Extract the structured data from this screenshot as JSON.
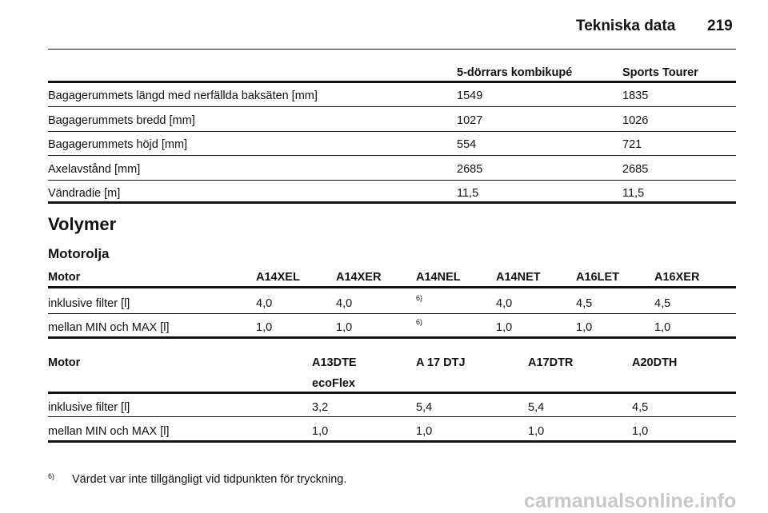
{
  "header": {
    "title": "Tekniska data",
    "page": "219"
  },
  "table1": {
    "columns": [
      "5-dörrars kombikupé",
      "Sports Tourer"
    ],
    "rows": [
      [
        "Bagagerummets längd med nerfällda baksäten [mm]",
        "1549",
        "1835"
      ],
      [
        "Bagagerummets bredd [mm]",
        "1027",
        "1026"
      ],
      [
        "Bagagerummets höjd [mm]",
        "554",
        "721"
      ],
      [
        "Axelavstånd [mm]",
        "2685",
        "2685"
      ],
      [
        "Vändradie [m]",
        "11,5",
        "11,5"
      ]
    ]
  },
  "section_title": "Volymer",
  "subsection_title": "Motorolja",
  "table2": {
    "columns": [
      "Motor",
      "A14XEL",
      "A14XER",
      "A14NEL",
      "A14NET",
      "A16LET",
      "A16XER"
    ],
    "rows": [
      [
        "inklusive filter [l]",
        "4,0",
        "4,0",
        "6)",
        "4,0",
        "4,5",
        "4,5"
      ],
      [
        "mellan MIN och MAX [l]",
        "1,0",
        "1,0",
        "6)",
        "1,0",
        "1,0",
        "1,0"
      ]
    ]
  },
  "table3": {
    "columns": [
      [
        "Motor"
      ],
      [
        "A13DTE",
        "ecoFlex"
      ],
      [
        "A 17 DTJ"
      ],
      [
        "A17DTR"
      ],
      [
        "A20DTH"
      ]
    ],
    "rows": [
      [
        "inklusive filter [l]",
        "3,2",
        "5,4",
        "5,4",
        "4,5"
      ],
      [
        "mellan MIN och MAX [l]",
        "1,0",
        "1,0",
        "1,0",
        "1,0"
      ]
    ]
  },
  "footnote": {
    "marker": "6)",
    "text": "Värdet var inte tillgängligt vid tidpunkten för tryckning."
  },
  "watermark": "carmanualsonline.info"
}
